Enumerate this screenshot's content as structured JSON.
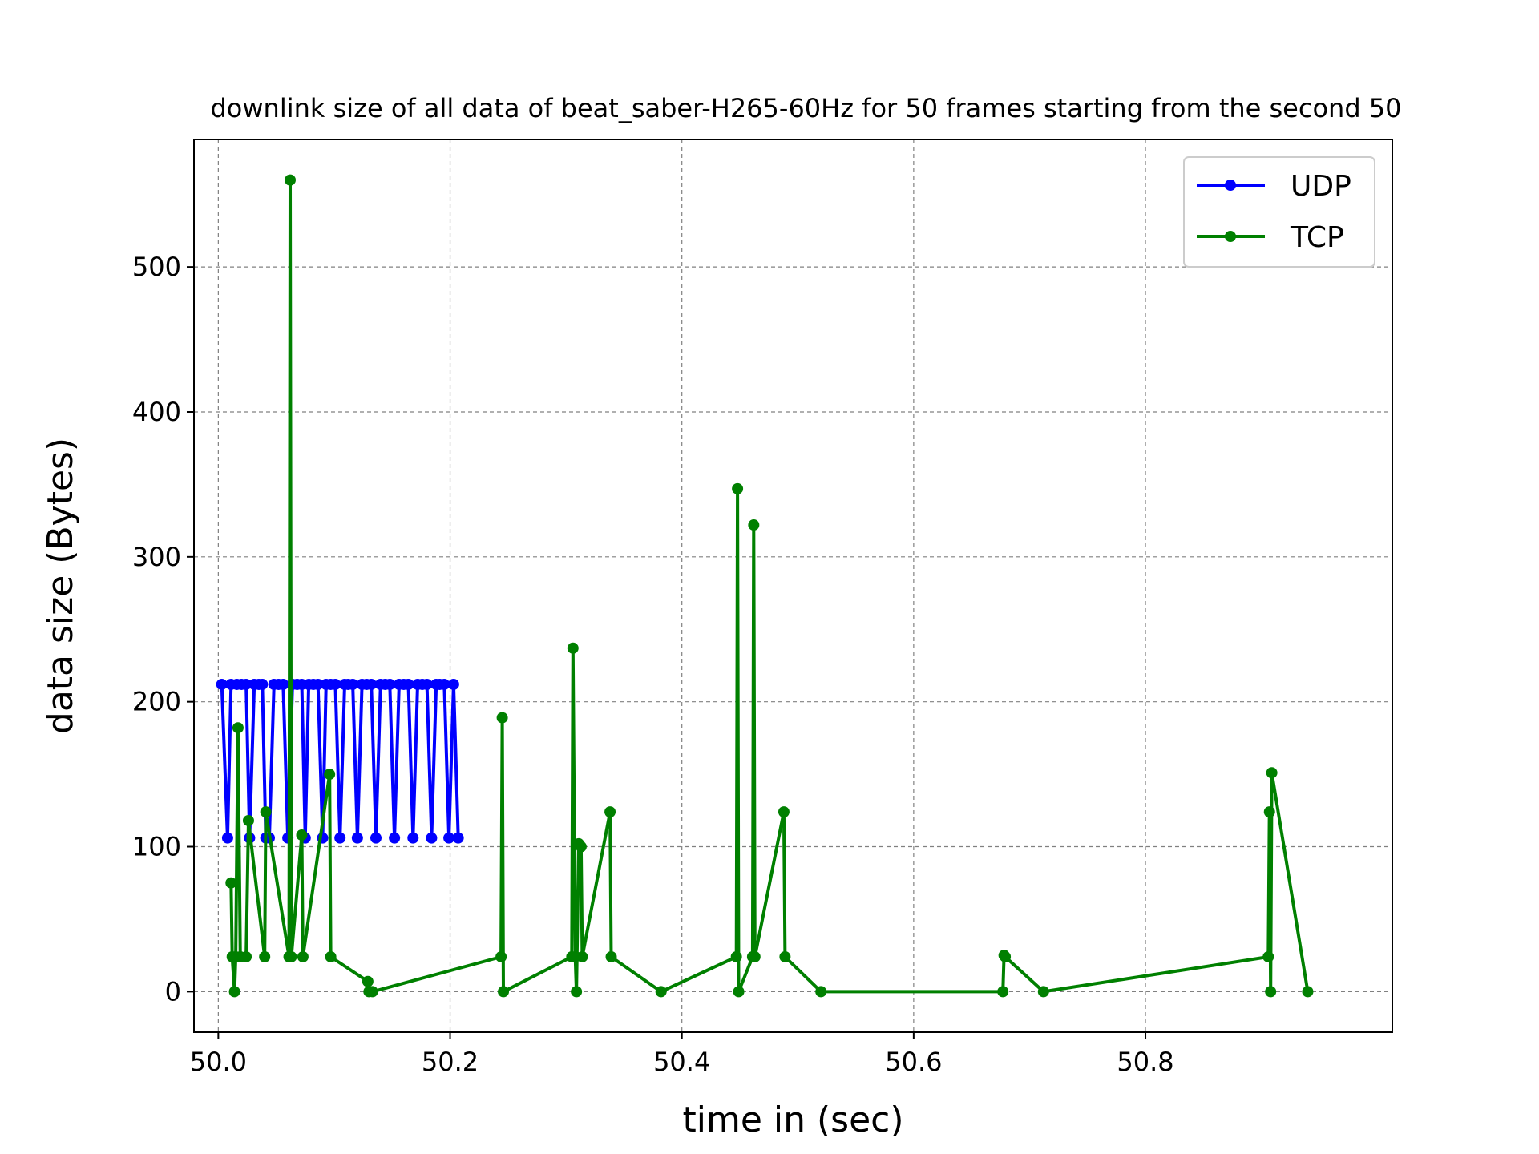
{
  "chart_data": {
    "type": "line",
    "title": "downlink size of all data of beat_saber-H265-60Hz for 50 frames starting from the second 50",
    "xlabel": "time in (sec)",
    "ylabel": "data size (Bytes)",
    "xlim": [
      49.979,
      51.013
    ],
    "ylim": [
      -28,
      588
    ],
    "xticks": [
      50.0,
      50.2,
      50.4,
      50.6,
      50.8
    ],
    "xtick_labels": [
      "50.0",
      "50.2",
      "50.4",
      "50.6",
      "50.8"
    ],
    "yticks": [
      0,
      100,
      200,
      300,
      400,
      500
    ],
    "ytick_labels": [
      "0",
      "100",
      "200",
      "300",
      "400",
      "500"
    ],
    "grid": true,
    "legend_position": "top-right",
    "series": [
      {
        "name": "UDP",
        "color": "#0000ff",
        "x": [
          50.003,
          50.008,
          50.011,
          50.016,
          50.02,
          50.024,
          50.027,
          50.031,
          50.035,
          50.038,
          50.041,
          50.044,
          50.048,
          50.052,
          50.056,
          50.06,
          50.064,
          50.068,
          50.072,
          50.075,
          50.078,
          50.082,
          50.086,
          50.09,
          50.093,
          50.097,
          50.101,
          50.105,
          50.109,
          50.112,
          50.116,
          50.12,
          50.124,
          50.128,
          50.132,
          50.136,
          50.14,
          50.144,
          50.148,
          50.152,
          50.156,
          50.16,
          50.164,
          50.168,
          50.172,
          50.176,
          50.18,
          50.184,
          50.188,
          50.191,
          50.195,
          50.199,
          50.203,
          50.207
        ],
        "values": [
          212,
          106,
          212,
          212,
          212,
          212,
          106,
          212,
          212,
          212,
          106,
          106,
          212,
          212,
          212,
          106,
          212,
          212,
          212,
          106,
          212,
          212,
          212,
          106,
          212,
          212,
          212,
          106,
          212,
          212,
          212,
          106,
          212,
          212,
          212,
          106,
          212,
          212,
          212,
          106,
          212,
          212,
          212,
          106,
          212,
          212,
          212,
          106,
          212,
          212,
          212,
          106,
          212,
          106
        ]
      },
      {
        "name": "TCP",
        "color": "#008000",
        "x": [
          50.011,
          50.012,
          50.014,
          50.015,
          50.017,
          50.019,
          50.024,
          50.026,
          50.04,
          50.041,
          50.061,
          50.062,
          50.063,
          50.072,
          50.073,
          50.096,
          50.097,
          50.129,
          50.13,
          50.133,
          50.244,
          50.245,
          50.246,
          50.305,
          50.306,
          50.308,
          50.309,
          50.311,
          50.313,
          50.314,
          50.338,
          50.339,
          50.382,
          50.447,
          50.448,
          50.449,
          50.461,
          50.462,
          50.463,
          50.488,
          50.489,
          50.52,
          50.677,
          50.678,
          50.679,
          50.712,
          50.906,
          50.907,
          50.908,
          50.909,
          50.94
        ],
        "values": [
          75,
          24,
          0,
          24,
          182,
          24,
          24,
          118,
          24,
          124,
          24,
          560,
          24,
          108,
          24,
          150,
          24,
          7,
          0,
          0,
          24,
          189,
          0,
          24,
          237,
          24,
          0,
          102,
          100,
          24,
          124,
          24,
          0,
          24,
          347,
          0,
          24,
          322,
          24,
          124,
          24,
          0,
          0,
          25,
          24,
          0,
          24,
          124,
          0,
          151,
          0
        ]
      }
    ]
  }
}
